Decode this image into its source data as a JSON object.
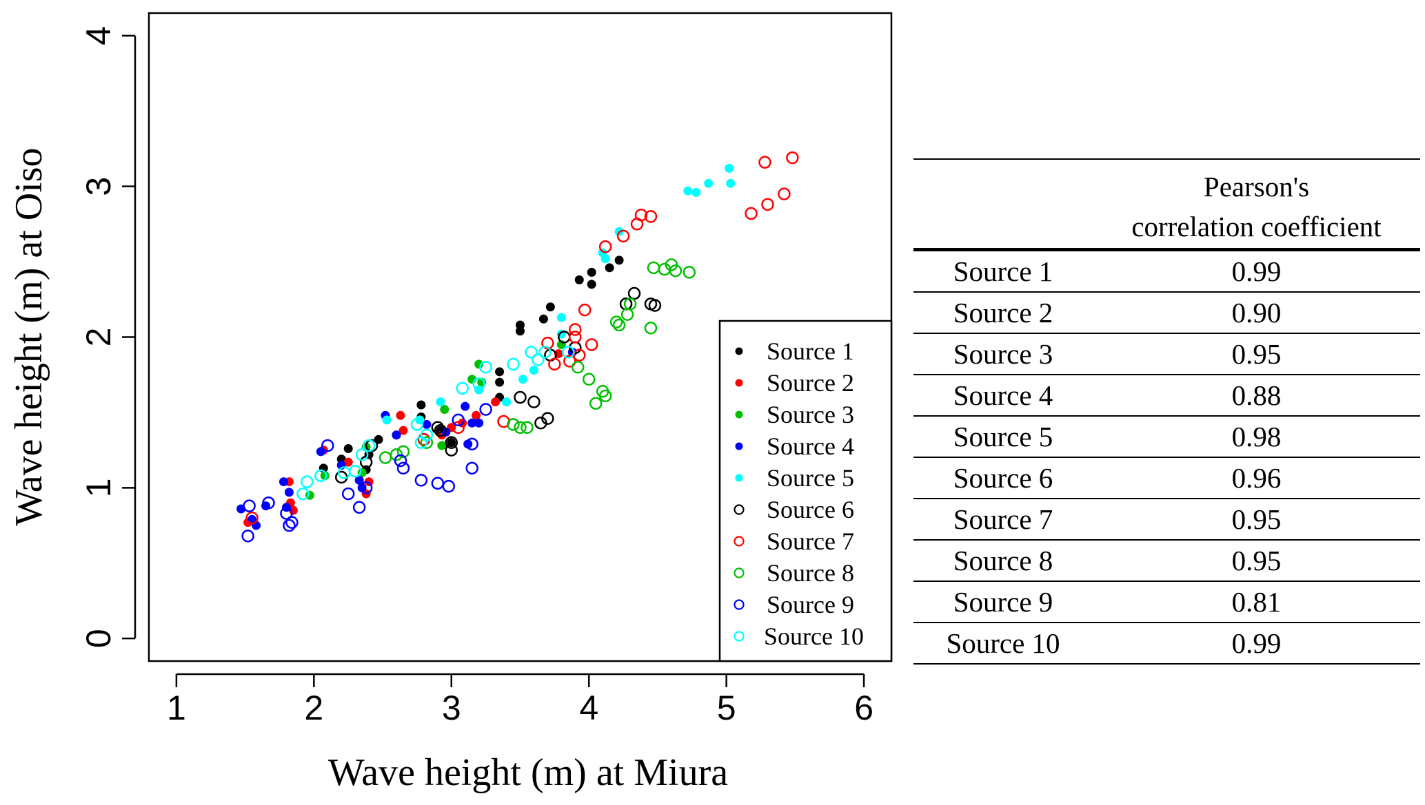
{
  "chart_data": {
    "type": "scatter",
    "title": "",
    "xlabel": "Wave height (m) at Miura",
    "ylabel": "Wave height (m) at Oiso",
    "xlim": [
      0.8,
      6.2
    ],
    "ylim": [
      -0.15,
      4.15
    ],
    "xticks": [
      1,
      2,
      3,
      4,
      5,
      6
    ],
    "yticks": [
      0,
      1,
      2,
      3,
      4
    ],
    "grid": false,
    "legend_position": "bottom-right",
    "series": [
      {
        "name": "Source 1",
        "color": "#000000",
        "marker": "filled-circle",
        "points": [
          [
            2.07,
            1.13
          ],
          [
            2.2,
            1.19
          ],
          [
            2.25,
            1.26
          ],
          [
            2.4,
            1.22
          ],
          [
            2.47,
            1.32
          ],
          [
            2.6,
            1.35
          ],
          [
            2.78,
            1.47
          ],
          [
            2.78,
            1.55
          ],
          [
            2.92,
            1.38
          ],
          [
            3.35,
            1.6
          ],
          [
            3.35,
            1.7
          ],
          [
            3.35,
            1.77
          ],
          [
            3.5,
            2.04
          ],
          [
            3.5,
            2.08
          ],
          [
            3.67,
            2.12
          ],
          [
            3.72,
            2.2
          ],
          [
            3.93,
            2.38
          ],
          [
            4.02,
            2.35
          ],
          [
            4.02,
            2.43
          ],
          [
            4.15,
            2.46
          ],
          [
            4.22,
            2.51
          ],
          [
            2.38,
            1.12
          ],
          [
            3.0,
            1.3
          ]
        ]
      },
      {
        "name": "Source 2",
        "color": "#ff0000",
        "marker": "filled-circle",
        "points": [
          [
            1.52,
            0.77
          ],
          [
            1.82,
            1.04
          ],
          [
            1.83,
            0.9
          ],
          [
            1.85,
            0.85
          ],
          [
            2.07,
            1.25
          ],
          [
            2.25,
            1.17
          ],
          [
            2.38,
            0.96
          ],
          [
            2.4,
            1.04
          ],
          [
            2.63,
            1.48
          ],
          [
            2.65,
            1.38
          ],
          [
            3.0,
            1.4
          ],
          [
            3.08,
            1.43
          ],
          [
            3.18,
            1.48
          ],
          [
            3.78,
            1.89
          ],
          [
            2.93,
            1.35
          ],
          [
            3.32,
            1.57
          ]
        ]
      },
      {
        "name": "Source 3",
        "color": "#00c000",
        "marker": "filled-circle",
        "points": [
          [
            1.97,
            0.95
          ],
          [
            2.08,
            1.08
          ],
          [
            2.35,
            1.1
          ],
          [
            2.38,
            1.27
          ],
          [
            2.93,
            1.28
          ],
          [
            3.2,
            1.82
          ],
          [
            3.15,
            1.72
          ],
          [
            3.8,
            1.95
          ],
          [
            2.95,
            1.52
          ],
          [
            3.22,
            1.7
          ]
        ]
      },
      {
        "name": "Source 4",
        "color": "#0000ff",
        "marker": "filled-circle",
        "points": [
          [
            1.47,
            0.86
          ],
          [
            1.55,
            0.79
          ],
          [
            1.58,
            0.75
          ],
          [
            1.65,
            0.88
          ],
          [
            1.78,
            1.04
          ],
          [
            1.82,
            0.97
          ],
          [
            1.8,
            0.87
          ],
          [
            2.05,
            1.24
          ],
          [
            2.2,
            1.15
          ],
          [
            2.33,
            1.05
          ],
          [
            2.35,
            1.0
          ],
          [
            2.52,
            1.48
          ],
          [
            2.6,
            1.35
          ],
          [
            2.82,
            1.42
          ],
          [
            3.1,
            1.54
          ],
          [
            3.15,
            1.43
          ],
          [
            3.2,
            1.43
          ],
          [
            2.96,
            1.37
          ],
          [
            3.12,
            1.29
          ],
          [
            3.88,
            1.9
          ]
        ]
      },
      {
        "name": "Source 5",
        "color": "#00ffff",
        "marker": "filled-circle",
        "points": [
          [
            2.53,
            1.45
          ],
          [
            2.77,
            1.45
          ],
          [
            2.92,
            1.57
          ],
          [
            3.2,
            1.65
          ],
          [
            3.52,
            1.72
          ],
          [
            3.6,
            1.78
          ],
          [
            3.8,
            2.02
          ],
          [
            3.8,
            2.13
          ],
          [
            4.1,
            2.56
          ],
          [
            4.22,
            2.7
          ],
          [
            4.12,
            2.52
          ],
          [
            4.72,
            2.97
          ],
          [
            4.78,
            2.96
          ],
          [
            4.87,
            3.02
          ],
          [
            5.02,
            3.12
          ],
          [
            5.03,
            3.02
          ],
          [
            3.4,
            1.57
          ]
        ]
      },
      {
        "name": "Source 6",
        "color": "#000000",
        "marker": "open-circle",
        "points": [
          [
            2.2,
            1.07
          ],
          [
            2.38,
            1.17
          ],
          [
            2.42,
            1.28
          ],
          [
            2.92,
            1.38
          ],
          [
            3.0,
            1.25
          ],
          [
            3.0,
            1.3
          ],
          [
            3.5,
            1.6
          ],
          [
            3.6,
            1.57
          ],
          [
            3.65,
            1.43
          ],
          [
            3.7,
            1.46
          ],
          [
            3.72,
            1.88
          ],
          [
            3.82,
            2.0
          ],
          [
            3.9,
            1.93
          ],
          [
            4.27,
            2.22
          ],
          [
            4.33,
            2.29
          ],
          [
            4.45,
            2.22
          ],
          [
            4.48,
            2.21
          ],
          [
            2.9,
            1.4
          ]
        ]
      },
      {
        "name": "Source 7",
        "color": "#ff0000",
        "marker": "open-circle",
        "points": [
          [
            1.55,
            0.8
          ],
          [
            2.8,
            1.32
          ],
          [
            3.05,
            1.4
          ],
          [
            3.38,
            1.44
          ],
          [
            3.7,
            1.96
          ],
          [
            3.75,
            1.82
          ],
          [
            3.86,
            1.84
          ],
          [
            3.9,
            2.05
          ],
          [
            3.93,
            1.88
          ],
          [
            3.97,
            2.18
          ],
          [
            4.02,
            1.95
          ],
          [
            4.12,
            2.6
          ],
          [
            4.25,
            2.67
          ],
          [
            4.35,
            2.75
          ],
          [
            4.38,
            2.81
          ],
          [
            4.45,
            2.8
          ],
          [
            5.18,
            2.82
          ],
          [
            5.3,
            2.88
          ],
          [
            5.42,
            2.95
          ],
          [
            5.28,
            3.16
          ],
          [
            5.48,
            3.19
          ],
          [
            3.9,
            2.0
          ]
        ]
      },
      {
        "name": "Source 8",
        "color": "#00c000",
        "marker": "open-circle",
        "points": [
          [
            2.52,
            1.2
          ],
          [
            2.6,
            1.22
          ],
          [
            2.65,
            1.24
          ],
          [
            2.82,
            1.3
          ],
          [
            3.45,
            1.42
          ],
          [
            3.5,
            1.4
          ],
          [
            3.55,
            1.4
          ],
          [
            3.92,
            1.8
          ],
          [
            4.0,
            1.72
          ],
          [
            4.05,
            1.56
          ],
          [
            4.1,
            1.64
          ],
          [
            4.12,
            1.61
          ],
          [
            4.2,
            2.1
          ],
          [
            4.22,
            2.08
          ],
          [
            4.28,
            2.15
          ],
          [
            4.3,
            2.22
          ],
          [
            4.45,
            2.06
          ],
          [
            4.47,
            2.46
          ],
          [
            4.55,
            2.45
          ],
          [
            4.6,
            2.48
          ],
          [
            4.63,
            2.44
          ],
          [
            4.73,
            2.43
          ]
        ]
      },
      {
        "name": "Source 9",
        "color": "#0000ff",
        "marker": "open-circle",
        "points": [
          [
            1.52,
            0.68
          ],
          [
            1.53,
            0.88
          ],
          [
            1.67,
            0.9
          ],
          [
            1.8,
            0.83
          ],
          [
            1.82,
            0.75
          ],
          [
            1.84,
            0.77
          ],
          [
            2.1,
            1.28
          ],
          [
            2.25,
            0.96
          ],
          [
            2.33,
            0.87
          ],
          [
            2.38,
            1.0
          ],
          [
            2.65,
            1.13
          ],
          [
            2.78,
            1.05
          ],
          [
            2.9,
            1.03
          ],
          [
            2.98,
            1.01
          ],
          [
            3.05,
            1.45
          ],
          [
            3.15,
            1.29
          ],
          [
            3.15,
            1.13
          ],
          [
            3.25,
            1.52
          ],
          [
            2.63,
            1.18
          ]
        ]
      },
      {
        "name": "Source 10",
        "color": "#00ffff",
        "marker": "open-circle",
        "points": [
          [
            1.92,
            0.96
          ],
          [
            1.95,
            1.04
          ],
          [
            2.05,
            1.08
          ],
          [
            2.22,
            1.1
          ],
          [
            2.3,
            1.11
          ],
          [
            2.35,
            1.22
          ],
          [
            2.4,
            1.28
          ],
          [
            2.75,
            1.42
          ],
          [
            2.78,
            1.3
          ],
          [
            2.82,
            1.35
          ],
          [
            3.08,
            1.66
          ],
          [
            3.2,
            1.69
          ],
          [
            3.25,
            1.8
          ],
          [
            3.58,
            1.9
          ],
          [
            3.63,
            1.85
          ],
          [
            3.68,
            1.9
          ],
          [
            3.85,
            1.9
          ],
          [
            3.45,
            1.82
          ]
        ]
      }
    ]
  },
  "table": {
    "header_line1": "Pearson's",
    "header_line2": "correlation coefficient",
    "rows": [
      {
        "source": "Source 1",
        "value": "0.99"
      },
      {
        "source": "Source 2",
        "value": "0.90"
      },
      {
        "source": "Source 3",
        "value": "0.95"
      },
      {
        "source": "Source 4",
        "value": "0.88"
      },
      {
        "source": "Source 5",
        "value": "0.98"
      },
      {
        "source": "Source 6",
        "value": "0.96"
      },
      {
        "source": "Source 7",
        "value": "0.95"
      },
      {
        "source": "Source 8",
        "value": "0.95"
      },
      {
        "source": "Source 9",
        "value": "0.81"
      },
      {
        "source": "Source 10",
        "value": "0.99"
      }
    ]
  }
}
